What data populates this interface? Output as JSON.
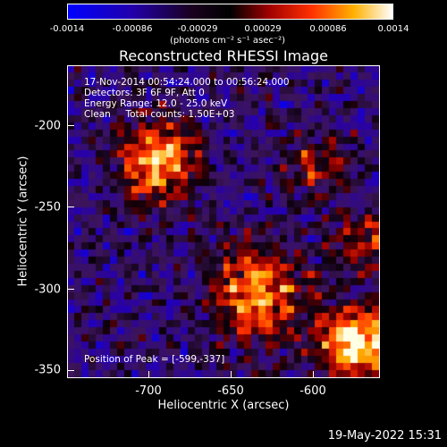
{
  "colorbar": {
    "ticks": [
      "-0.0014",
      "-0.00086",
      "-0.00029",
      "0.00029",
      "0.00086",
      "0.0014"
    ],
    "unit": "(photons cm⁻² s⁻¹ asec⁻²)"
  },
  "title": "Reconstructed RHESSI Image",
  "annotations": {
    "time": "17-Nov-2014 00:54:24.000 to 00:56:24.000",
    "detectors": "Detectors: 3F 6F 9F, Att 0",
    "energy": "Energy Range: 12.0 - 25.0 keV",
    "clean": "Clean     Total counts: 1.50E+03",
    "peak": "Position of Peak = [-599,-337]"
  },
  "axes": {
    "xlabel": "Heliocentric X (arcsec)",
    "ylabel": "Heliocentric Y (arcsec)",
    "xticks": [
      "-700",
      "-650",
      "-600"
    ],
    "yticks": [
      "-200",
      "-250",
      "-300",
      "-350"
    ],
    "xlim": [
      -745,
      -555
    ],
    "ylim": [
      -356,
      -166
    ]
  },
  "footer": {
    "date": "19-May-2022 15:31"
  }
}
